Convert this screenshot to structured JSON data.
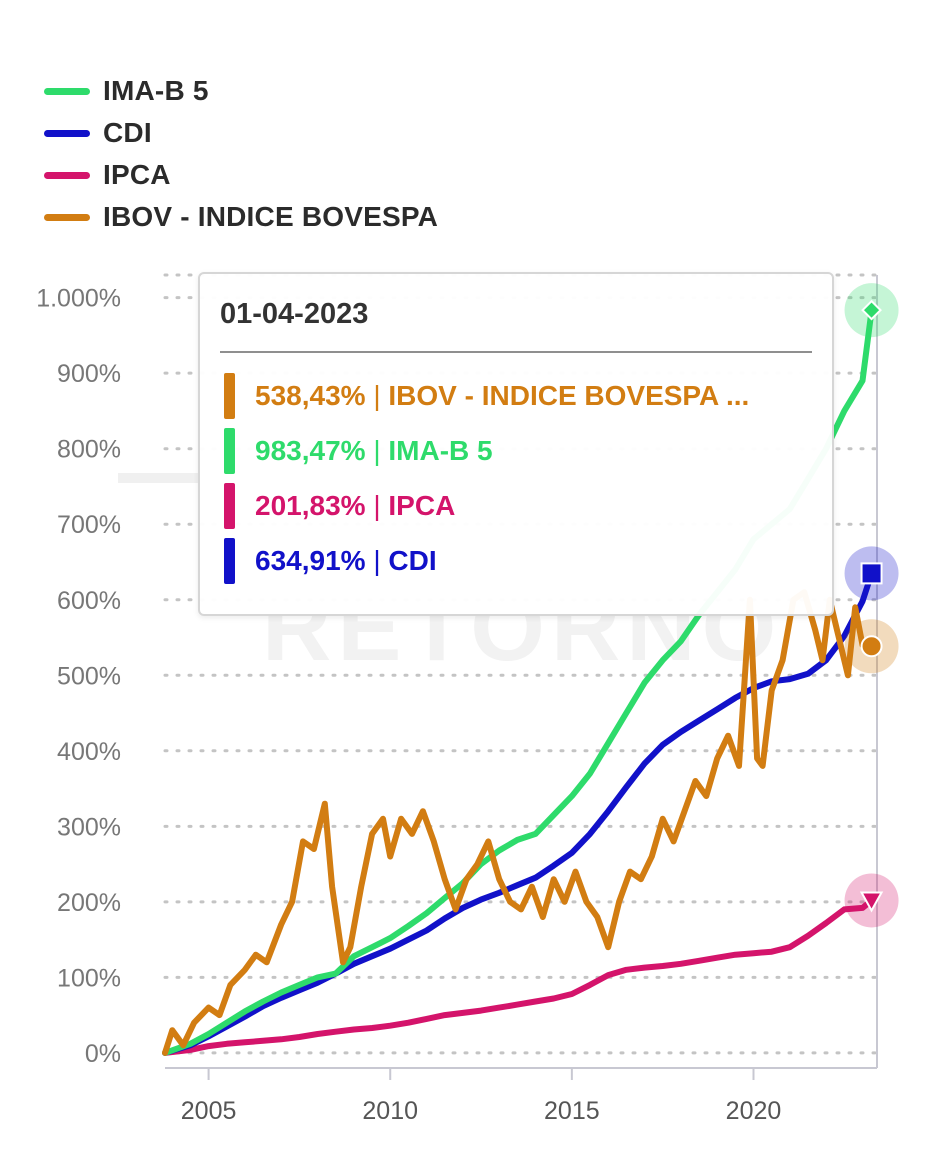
{
  "legend": [
    {
      "label": "IMA-B 5",
      "color": "#2edb6b"
    },
    {
      "label": "CDI",
      "color": "#1111c9"
    },
    {
      "label": "IPCA",
      "color": "#d4146b"
    },
    {
      "label": "IBOV - INDICE BOVESPA",
      "color": "#d27d12"
    }
  ],
  "watermark": "RETORNO",
  "tooltip": {
    "date": "01-04-2023",
    "rows": [
      {
        "value": "538,43%",
        "label": "IBOV - INDICE BOVESPA ...",
        "color": "#d27d12"
      },
      {
        "value": "983,47%",
        "label": "IMA-B 5",
        "color": "#2edb6b"
      },
      {
        "value": "201,83%",
        "label": "IPCA",
        "color": "#d4146b"
      },
      {
        "value": "634,91%",
        "label": "CDI",
        "color": "#1111c9"
      }
    ]
  },
  "chart_data": {
    "type": "line",
    "ylim": [
      -20,
      1030
    ],
    "xlim": [
      2003.8,
      2023.4
    ],
    "y_ticks": [
      {
        "value": 0,
        "label": "0%"
      },
      {
        "value": 100,
        "label": "100%"
      },
      {
        "value": 200,
        "label": "200%"
      },
      {
        "value": 300,
        "label": "300%"
      },
      {
        "value": 400,
        "label": "400%"
      },
      {
        "value": 500,
        "label": "500%"
      },
      {
        "value": 600,
        "label": "600%"
      },
      {
        "value": 700,
        "label": "700%"
      },
      {
        "value": 800,
        "label": "800%"
      },
      {
        "value": 900,
        "label": "900%"
      },
      {
        "value": 1000,
        "label": "1.000%"
      }
    ],
    "x_ticks": [
      {
        "value": 2005,
        "label": "2005"
      },
      {
        "value": 2010,
        "label": "2010"
      },
      {
        "value": 2015,
        "label": "2015"
      },
      {
        "value": 2020,
        "label": "2020"
      }
    ],
    "series": [
      {
        "name": "IMA-B 5",
        "color": "#2edb6b",
        "marker": "diamond",
        "x": [
          2003.8,
          2004.5,
          2005.0,
          2005.5,
          2006.0,
          2006.5,
          2007.0,
          2007.5,
          2008.0,
          2008.5,
          2009.0,
          2009.5,
          2010.0,
          2010.5,
          2011.0,
          2011.5,
          2012.0,
          2012.5,
          2013.0,
          2013.5,
          2014.0,
          2014.5,
          2015.0,
          2015.5,
          2016.0,
          2016.5,
          2017.0,
          2017.5,
          2018.0,
          2018.5,
          2019.0,
          2019.5,
          2020.0,
          2020.5,
          2021.0,
          2021.5,
          2022.0,
          2022.5,
          2023.0,
          2023.25
        ],
        "y": [
          0,
          12,
          25,
          40,
          55,
          68,
          80,
          90,
          100,
          105,
          128,
          140,
          152,
          168,
          185,
          205,
          225,
          250,
          268,
          282,
          290,
          315,
          340,
          370,
          410,
          450,
          490,
          520,
          545,
          580,
          610,
          640,
          680,
          700,
          720,
          760,
          800,
          850,
          890,
          983.47
        ]
      },
      {
        "name": "CDI",
        "color": "#1111c9",
        "marker": "square",
        "x": [
          2003.8,
          2004.5,
          2005.0,
          2005.5,
          2006.0,
          2006.5,
          2007.0,
          2007.5,
          2008.0,
          2008.5,
          2009.0,
          2009.5,
          2010.0,
          2010.5,
          2011.0,
          2011.5,
          2012.0,
          2012.5,
          2013.0,
          2013.5,
          2014.0,
          2014.5,
          2015.0,
          2015.5,
          2016.0,
          2016.5,
          2017.0,
          2017.5,
          2018.0,
          2018.5,
          2019.0,
          2019.5,
          2020.0,
          2020.5,
          2021.0,
          2021.5,
          2022.0,
          2022.5,
          2023.0,
          2023.25
        ],
        "y": [
          0,
          10,
          22,
          35,
          48,
          62,
          73,
          83,
          93,
          105,
          118,
          128,
          138,
          150,
          162,
          178,
          192,
          203,
          212,
          222,
          232,
          248,
          265,
          290,
          320,
          352,
          383,
          408,
          425,
          440,
          455,
          470,
          483,
          492,
          495,
          502,
          520,
          552,
          598,
          634.91
        ]
      },
      {
        "name": "IPCA",
        "color": "#d4146b",
        "marker": "triangle",
        "x": [
          2003.8,
          2004.5,
          2005.0,
          2005.5,
          2006.0,
          2006.5,
          2007.0,
          2007.5,
          2008.0,
          2008.5,
          2009.0,
          2009.5,
          2010.0,
          2010.5,
          2011.0,
          2011.5,
          2012.0,
          2012.5,
          2013.0,
          2013.5,
          2014.0,
          2014.5,
          2015.0,
          2015.5,
          2016.0,
          2016.5,
          2017.0,
          2017.5,
          2018.0,
          2018.5,
          2019.0,
          2019.5,
          2020.0,
          2020.5,
          2021.0,
          2021.5,
          2022.0,
          2022.5,
          2023.0,
          2023.25
        ],
        "y": [
          0,
          4,
          9,
          12,
          14,
          16,
          18,
          21,
          25,
          28,
          31,
          33,
          36,
          40,
          45,
          50,
          53,
          56,
          60,
          64,
          68,
          72,
          78,
          90,
          103,
          110,
          113,
          115,
          118,
          122,
          126,
          130,
          132,
          134,
          140,
          155,
          172,
          190,
          192,
          201.83
        ]
      },
      {
        "name": "IBOV - INDICE BOVESPA",
        "color": "#d27d12",
        "marker": "circle",
        "x": [
          2003.8,
          2004.0,
          2004.3,
          2004.6,
          2005.0,
          2005.3,
          2005.6,
          2006.0,
          2006.3,
          2006.6,
          2007.0,
          2007.3,
          2007.6,
          2007.9,
          2008.2,
          2008.4,
          2008.7,
          2008.9,
          2009.2,
          2009.5,
          2009.8,
          2010.0,
          2010.3,
          2010.6,
          2010.9,
          2011.2,
          2011.5,
          2011.8,
          2012.1,
          2012.4,
          2012.7,
          2013.0,
          2013.3,
          2013.6,
          2013.9,
          2014.2,
          2014.5,
          2014.8,
          2015.1,
          2015.4,
          2015.7,
          2016.0,
          2016.3,
          2016.6,
          2016.9,
          2017.2,
          2017.5,
          2017.8,
          2018.1,
          2018.4,
          2018.7,
          2019.0,
          2019.3,
          2019.6,
          2019.9,
          2020.1,
          2020.25,
          2020.5,
          2020.8,
          2021.1,
          2021.4,
          2021.7,
          2021.9,
          2022.1,
          2022.3,
          2022.6,
          2022.8,
          2023.0,
          2023.25
        ],
        "y": [
          0,
          30,
          10,
          40,
          60,
          50,
          90,
          110,
          130,
          120,
          170,
          200,
          280,
          270,
          330,
          220,
          120,
          140,
          220,
          290,
          310,
          260,
          310,
          290,
          320,
          280,
          230,
          190,
          230,
          250,
          280,
          230,
          200,
          190,
          220,
          180,
          230,
          200,
          240,
          200,
          180,
          140,
          200,
          240,
          230,
          260,
          310,
          280,
          320,
          360,
          340,
          390,
          420,
          380,
          600,
          390,
          380,
          480,
          520,
          600,
          610,
          560,
          520,
          600,
          560,
          500,
          590,
          540,
          538.43
        ]
      }
    ]
  }
}
